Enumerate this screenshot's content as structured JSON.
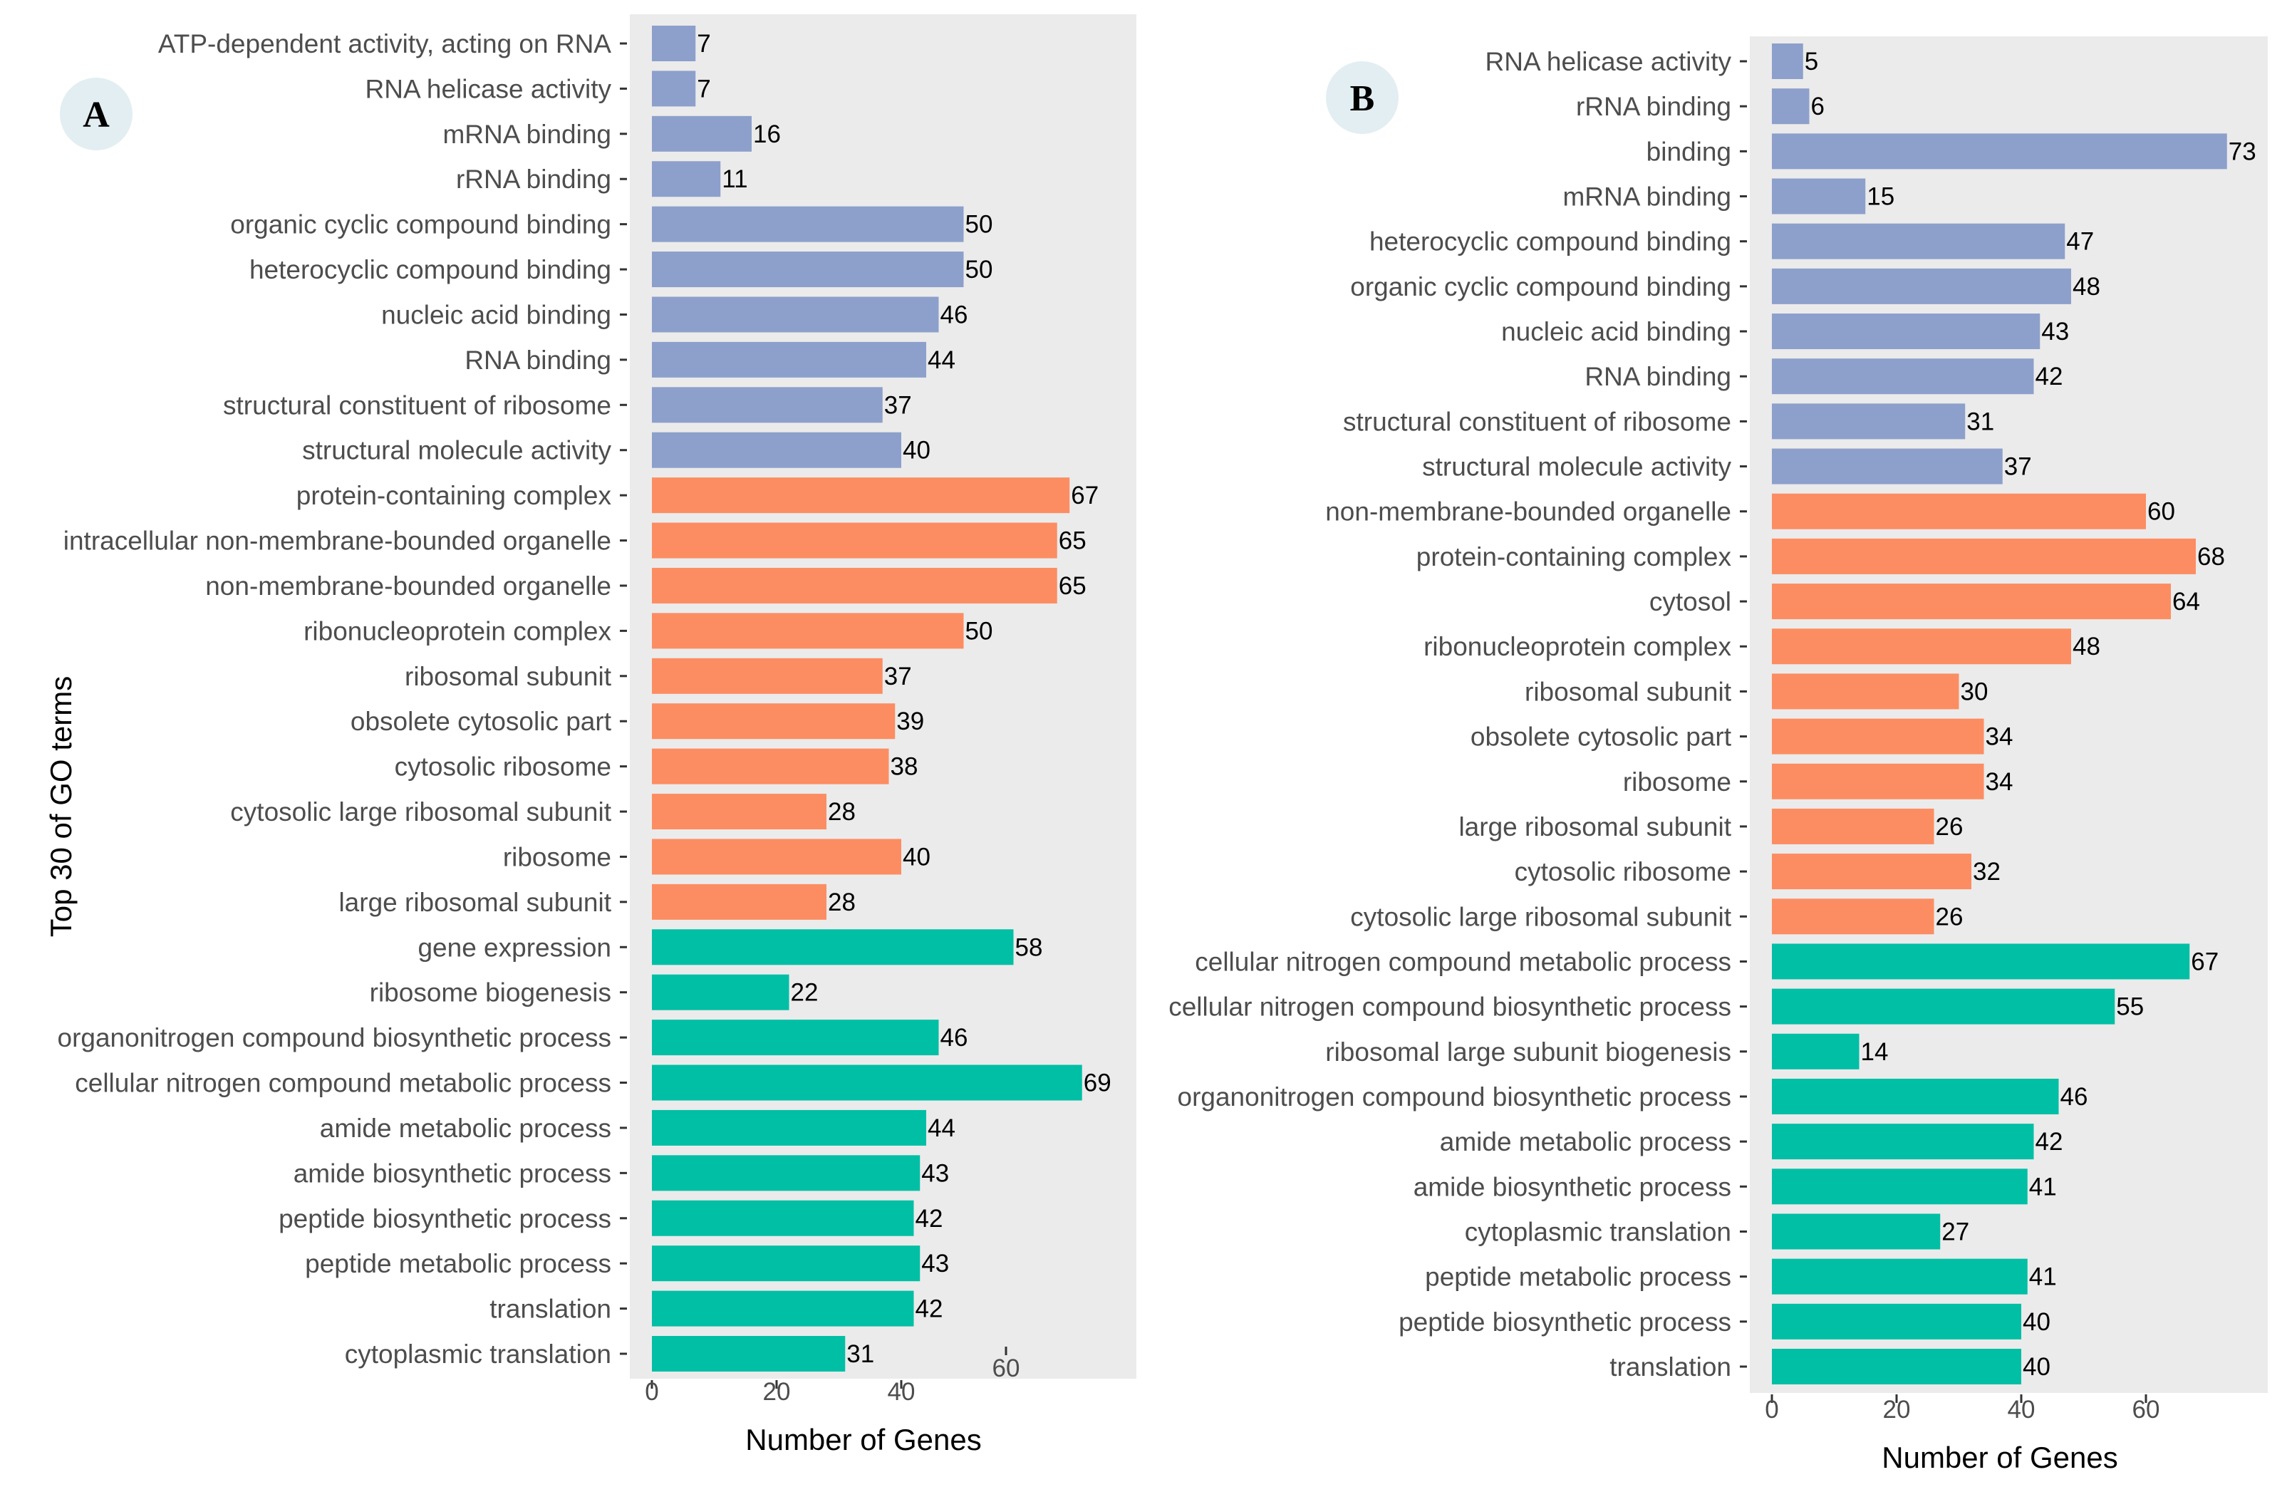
{
  "chart_data": [
    {
      "panel": "A",
      "type": "bar",
      "orientation": "horizontal",
      "ylabel": "Top 30 of GO terms",
      "xlabel": "Number of Genes",
      "xticks": [
        0,
        20,
        40,
        60
      ],
      "xlim": [
        0,
        77
      ],
      "colors": {
        "molecular_function": "#8DA0CB",
        "cellular_component": "#FC8D62",
        "biological_process": "#00BFA5"
      },
      "categories": [
        "ATP-dependent activity, acting on RNA",
        "RNA helicase activity",
        "mRNA binding",
        "rRNA binding",
        "organic cyclic compound binding",
        "heterocyclic compound binding",
        "nucleic acid binding",
        "RNA binding",
        "structural constituent of ribosome",
        "structural molecule activity",
        "protein-containing complex",
        "intracellular non-membrane-bounded organelle",
        "non-membrane-bounded organelle",
        "ribonucleoprotein complex",
        "ribosomal subunit",
        "obsolete cytosolic part",
        "cytosolic ribosome",
        "cytosolic large ribosomal subunit",
        "ribosome",
        "large ribosomal subunit",
        "gene expression",
        "ribosome biogenesis",
        "organonitrogen compound biosynthetic process",
        "cellular nitrogen compound metabolic process",
        "amide metabolic process",
        "amide biosynthetic process",
        "peptide biosynthetic process",
        "peptide metabolic process",
        "translation",
        "cytoplasmic translation"
      ],
      "values": [
        7,
        7,
        16,
        11,
        50,
        50,
        46,
        44,
        37,
        40,
        67,
        65,
        65,
        50,
        37,
        39,
        38,
        28,
        40,
        28,
        58,
        22,
        46,
        69,
        44,
        43,
        42,
        43,
        42,
        31
      ],
      "groups": [
        "molecular_function",
        "molecular_function",
        "molecular_function",
        "molecular_function",
        "molecular_function",
        "molecular_function",
        "molecular_function",
        "molecular_function",
        "molecular_function",
        "molecular_function",
        "cellular_component",
        "cellular_component",
        "cellular_component",
        "cellular_component",
        "cellular_component",
        "cellular_component",
        "cellular_component",
        "cellular_component",
        "cellular_component",
        "cellular_component",
        "biological_process",
        "biological_process",
        "biological_process",
        "biological_process",
        "biological_process",
        "biological_process",
        "biological_process",
        "biological_process",
        "biological_process",
        "biological_process"
      ]
    },
    {
      "panel": "B",
      "type": "bar",
      "orientation": "horizontal",
      "ylabel": "",
      "xlabel": "Number of Genes",
      "xticks": [
        0,
        20,
        40,
        60
      ],
      "xlim": [
        0,
        80
      ],
      "colors": {
        "molecular_function": "#8DA0CB",
        "cellular_component": "#FC8D62",
        "biological_process": "#00BFA5"
      },
      "categories": [
        "RNA helicase activity",
        "rRNA binding",
        "binding",
        "mRNA binding",
        "heterocyclic compound binding",
        "organic cyclic compound binding",
        "nucleic acid binding",
        "RNA binding",
        "structural constituent of ribosome",
        "structural molecule activity",
        "non-membrane-bounded organelle",
        "protein-containing complex",
        "cytosol",
        "ribonucleoprotein complex",
        "ribosomal subunit",
        "obsolete cytosolic part",
        "ribosome",
        "large ribosomal subunit",
        "cytosolic ribosome",
        "cytosolic large ribosomal subunit",
        "cellular nitrogen compound metabolic process",
        "cellular nitrogen compound biosynthetic process",
        "ribosomal large subunit biogenesis",
        "organonitrogen compound biosynthetic process",
        "amide metabolic process",
        "amide biosynthetic process",
        "cytoplasmic translation",
        "peptide metabolic process",
        "peptide biosynthetic process",
        "translation"
      ],
      "values": [
        5,
        6,
        73,
        15,
        47,
        48,
        43,
        42,
        31,
        37,
        60,
        68,
        64,
        48,
        30,
        34,
        34,
        26,
        32,
        26,
        67,
        55,
        14,
        46,
        42,
        41,
        27,
        41,
        40,
        40
      ],
      "groups": [
        "molecular_function",
        "molecular_function",
        "molecular_function",
        "molecular_function",
        "molecular_function",
        "molecular_function",
        "molecular_function",
        "molecular_function",
        "molecular_function",
        "molecular_function",
        "cellular_component",
        "cellular_component",
        "cellular_component",
        "cellular_component",
        "cellular_component",
        "cellular_component",
        "cellular_component",
        "cellular_component",
        "cellular_component",
        "cellular_component",
        "biological_process",
        "biological_process",
        "biological_process",
        "biological_process",
        "biological_process",
        "biological_process",
        "biological_process",
        "biological_process",
        "biological_process",
        "biological_process"
      ]
    }
  ]
}
